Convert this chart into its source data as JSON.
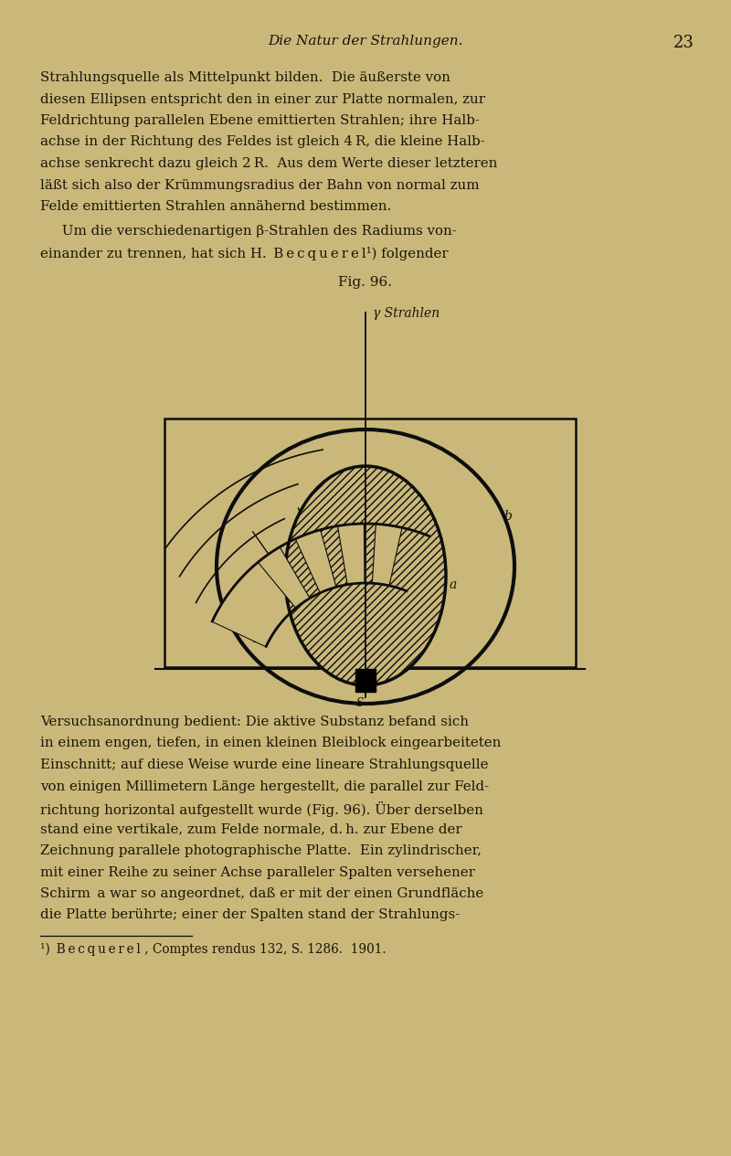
{
  "bg_color": "#c9b87a",
  "text_color": "#1a1508",
  "line_color": "#0d0d0d",
  "header_text": "Die Natur der Strahlungen.",
  "header_pagenum": "23",
  "fig_caption": "Fig. 96.",
  "fig_label_gamma": "γ Strahlen",
  "para1": [
    "Strahlungsquelle als Mittelpunkt bilden.  Die äußerste von",
    "diesen Ellipsen entspricht den in einer zur Platte normalen, zur",
    "Feldrichtung parallelen Ebene emittierten Strahlen; ihre Halb-",
    "achse in der Richtung des Feldes ist gleich 4 R, die kleine Halb-",
    "achse senkrecht dazu gleich 2 R.  Aus dem Werte dieser letzteren",
    "läßt sich also der Krümmungsradius der Bahn von normal zum",
    "Felde emittierten Strahlen annähernd bestimmen."
  ],
  "para2": [
    "     Um die verschiedenartigen β-Strahlen des Radiums von-",
    "einander zu trennen, hat sich H. B e c q u e r e l¹) folgender"
  ],
  "para3": [
    "Versuchsanordnung bedient: Die aktive Substanz befand sich",
    "in einem engen, tiefen, in einen kleinen Bleiblock eingearbeiteten",
    "Einschnitt; auf diese Weise wurde eine lineare Strahlungsquelle",
    "von einigen Millimetern Länge hergestellt, die parallel zur Feld-",
    "richtung horizontal aufgestellt wurde (Fig. 96). Über derselben",
    "stand eine vertikale, zum Felde normale, d. h. zur Ebene der",
    "Zeichnung parallele photographische Platte.  Ein zylindrischer,",
    "mit einer Reihe zu seiner Achse paralleler Spalten versehener",
    "Schirm a war so angeordnet, daß er mit der einen Grundfläche",
    "die Platte berührte; einer der Spalten stand der Strahlungs-"
  ],
  "footnote": "¹) B e c q u e r e l , Comptes rendus 132, S. 1286.  1901."
}
